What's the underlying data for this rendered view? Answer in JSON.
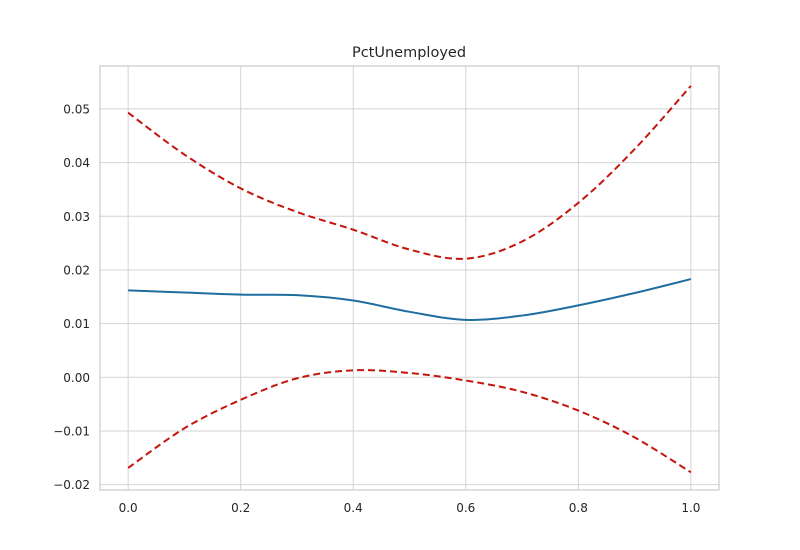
{
  "chart_data": {
    "type": "line",
    "title": "PctUnemployed",
    "xlabel": "",
    "ylabel": "",
    "xlim": [
      -0.05,
      1.05
    ],
    "ylim": [
      -0.021,
      0.058
    ],
    "grid": true,
    "xticks": [
      0.0,
      0.2,
      0.4,
      0.6,
      0.8,
      1.0
    ],
    "xtick_labels": [
      "0.0",
      "0.2",
      "0.4",
      "0.6",
      "0.8",
      "1.0"
    ],
    "yticks": [
      -0.02,
      -0.01,
      0.0,
      0.01,
      0.02,
      0.03,
      0.04,
      0.05
    ],
    "ytick_labels": [
      "−0.02",
      "−0.01",
      "0.00",
      "0.01",
      "0.02",
      "0.03",
      "0.04",
      "0.05"
    ],
    "series": [
      {
        "style": "solid",
        "color": "#1f6ea0",
        "x": [
          0.0,
          0.1,
          0.2,
          0.3,
          0.4,
          0.5,
          0.6,
          0.7,
          0.8,
          0.9,
          1.0
        ],
        "y": [
          0.0162,
          0.0158,
          0.0154,
          0.0153,
          0.0143,
          0.0122,
          0.0107,
          0.0115,
          0.0134,
          0.0157,
          0.0183
        ]
      },
      {
        "style": "dashed",
        "color": "#c4150c",
        "x": [
          0.0,
          0.1,
          0.2,
          0.3,
          0.4,
          0.5,
          0.6,
          0.7,
          0.8,
          0.9,
          1.0
        ],
        "y": [
          0.0493,
          0.0415,
          0.0352,
          0.0308,
          0.0275,
          0.0238,
          0.0221,
          0.0253,
          0.0325,
          0.0425,
          0.0543
        ]
      },
      {
        "style": "dashed",
        "color": "#c4150c",
        "x": [
          0.0,
          0.1,
          0.2,
          0.3,
          0.4,
          0.5,
          0.6,
          0.7,
          0.8,
          0.9,
          1.0
        ],
        "y": [
          -0.0169,
          -0.0095,
          -0.0042,
          -0.0002,
          0.0013,
          0.0008,
          -0.0006,
          -0.0027,
          -0.0062,
          -0.0112,
          -0.0177
        ]
      }
    ]
  },
  "colors": {
    "axes_border": "#cccccc",
    "grid": "#d3d3d3",
    "text": "#262626"
  }
}
